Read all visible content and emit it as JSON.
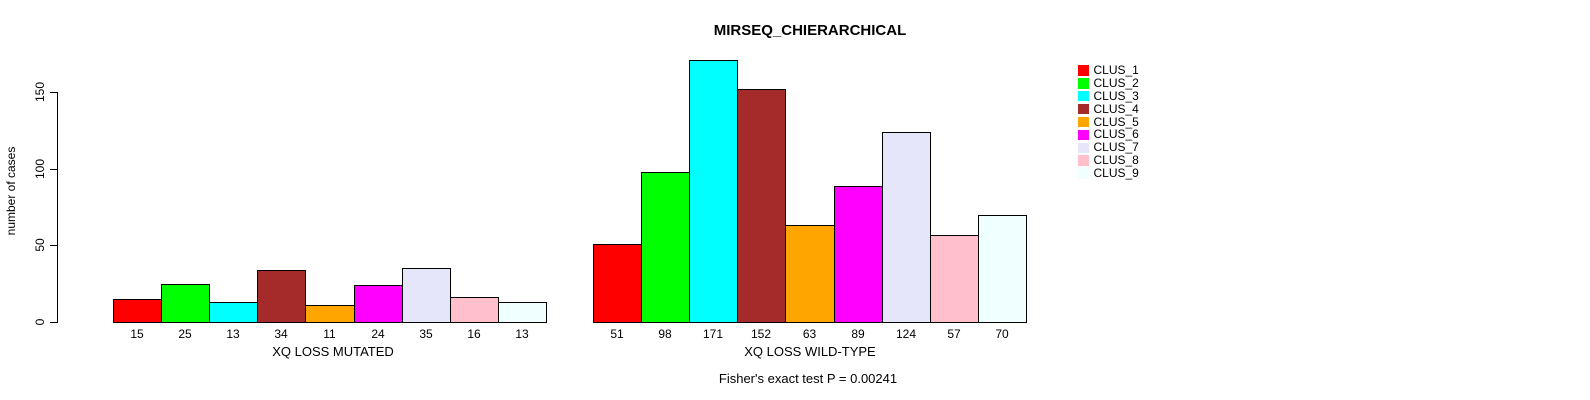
{
  "chart_data": {
    "type": "bar",
    "title": "MIRSEQ_CHIERARCHICAL",
    "ylabel": "number of cases",
    "yticks": [
      0,
      50,
      100,
      150
    ],
    "ylim": [
      0,
      171
    ],
    "grid": false,
    "legend_position": "right",
    "groups": [
      {
        "label": "XQ LOSS MUTATED",
        "values": [
          15,
          25,
          13,
          34,
          11,
          24,
          35,
          16,
          13
        ]
      },
      {
        "label": "XQ LOSS WILD-TYPE",
        "values": [
          51,
          98,
          171,
          152,
          63,
          89,
          124,
          57,
          70
        ]
      }
    ],
    "legend": [
      {
        "name": "CLUS_1",
        "color": "#FF0000"
      },
      {
        "name": "CLUS_2",
        "color": "#00FF00"
      },
      {
        "name": "CLUS_3",
        "color": "#00FFFF"
      },
      {
        "name": "CLUS_4",
        "color": "#A52A2A"
      },
      {
        "name": "CLUS_5",
        "color": "#FFA500"
      },
      {
        "name": "CLUS_6",
        "color": "#FF00FF"
      },
      {
        "name": "CLUS_7",
        "color": "#E6E6FA"
      },
      {
        "name": "CLUS_8",
        "color": "#FFC0CB"
      },
      {
        "name": "CLUS_9",
        "color": "#F0FFFF"
      }
    ],
    "footnote": "Fisher's exact test P = 0.00241"
  }
}
